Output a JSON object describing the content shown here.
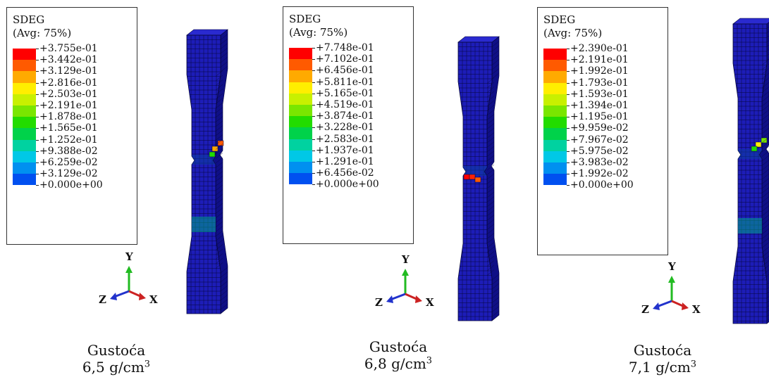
{
  "colors": {
    "specimen_face": "#1d1db8",
    "specimen_side": "#0f0f86",
    "specimen_top": "#2a2ad0",
    "mesh": "#06063a"
  },
  "panels": [
    {
      "legend": {
        "variable": "SDEG",
        "averaging": "(Avg: 75%)",
        "values": [
          "+3.755e-01",
          "+3.442e-01",
          "+3.129e-01",
          "+2.816e-01",
          "+2.503e-01",
          "+2.191e-01",
          "+1.878e-01",
          "+1.565e-01",
          "+1.252e-01",
          "+9.388e-02",
          "+6.259e-02",
          "+3.129e-02",
          "+0.000e+00"
        ]
      },
      "triad": {
        "y": "Y",
        "z": "Z",
        "x": "X"
      },
      "caption": {
        "line1": "Gustoća",
        "value": "6,5 g/cm",
        "sup": "3"
      }
    },
    {
      "legend": {
        "variable": "SDEG",
        "averaging": "(Avg: 75%)",
        "values": [
          "+7.748e-01",
          "+7.102e-01",
          "+6.456e-01",
          "+5.811e-01",
          "+5.165e-01",
          "+4.519e-01",
          "+3.874e-01",
          "+3.228e-01",
          "+2.583e-01",
          "+1.937e-01",
          "+1.291e-01",
          "+6.456e-02",
          "+0.000e+00"
        ]
      },
      "triad": {
        "y": "Y",
        "z": "Z",
        "x": "X"
      },
      "caption": {
        "line1": "Gustoća",
        "value": "6,8 g/cm",
        "sup": "3"
      }
    },
    {
      "legend": {
        "variable": "SDEG",
        "averaging": "(Avg: 75%)",
        "values": [
          "+2.390e-01",
          "+2.191e-01",
          "+1.992e-01",
          "+1.793e-01",
          "+1.593e-01",
          "+1.394e-01",
          "+1.195e-01",
          "+9.959e-02",
          "+7.967e-02",
          "+5.975e-02",
          "+3.983e-02",
          "+1.992e-02",
          "+0.000e+00"
        ]
      },
      "triad": {
        "y": "Y",
        "z": "Z",
        "x": "X"
      },
      "caption": {
        "line1": "Gustoća",
        "value": "7,1 g/cm",
        "sup": "3"
      }
    }
  ],
  "contour_colors": [
    "#ff0000",
    "#ff5a00",
    "#ffaa00",
    "#ffee00",
    "#c8f000",
    "#7ae600",
    "#22dc00",
    "#00d24a",
    "#00d2a0",
    "#00c8e6",
    "#0090f0",
    "#0050f0",
    "#0000f0"
  ]
}
